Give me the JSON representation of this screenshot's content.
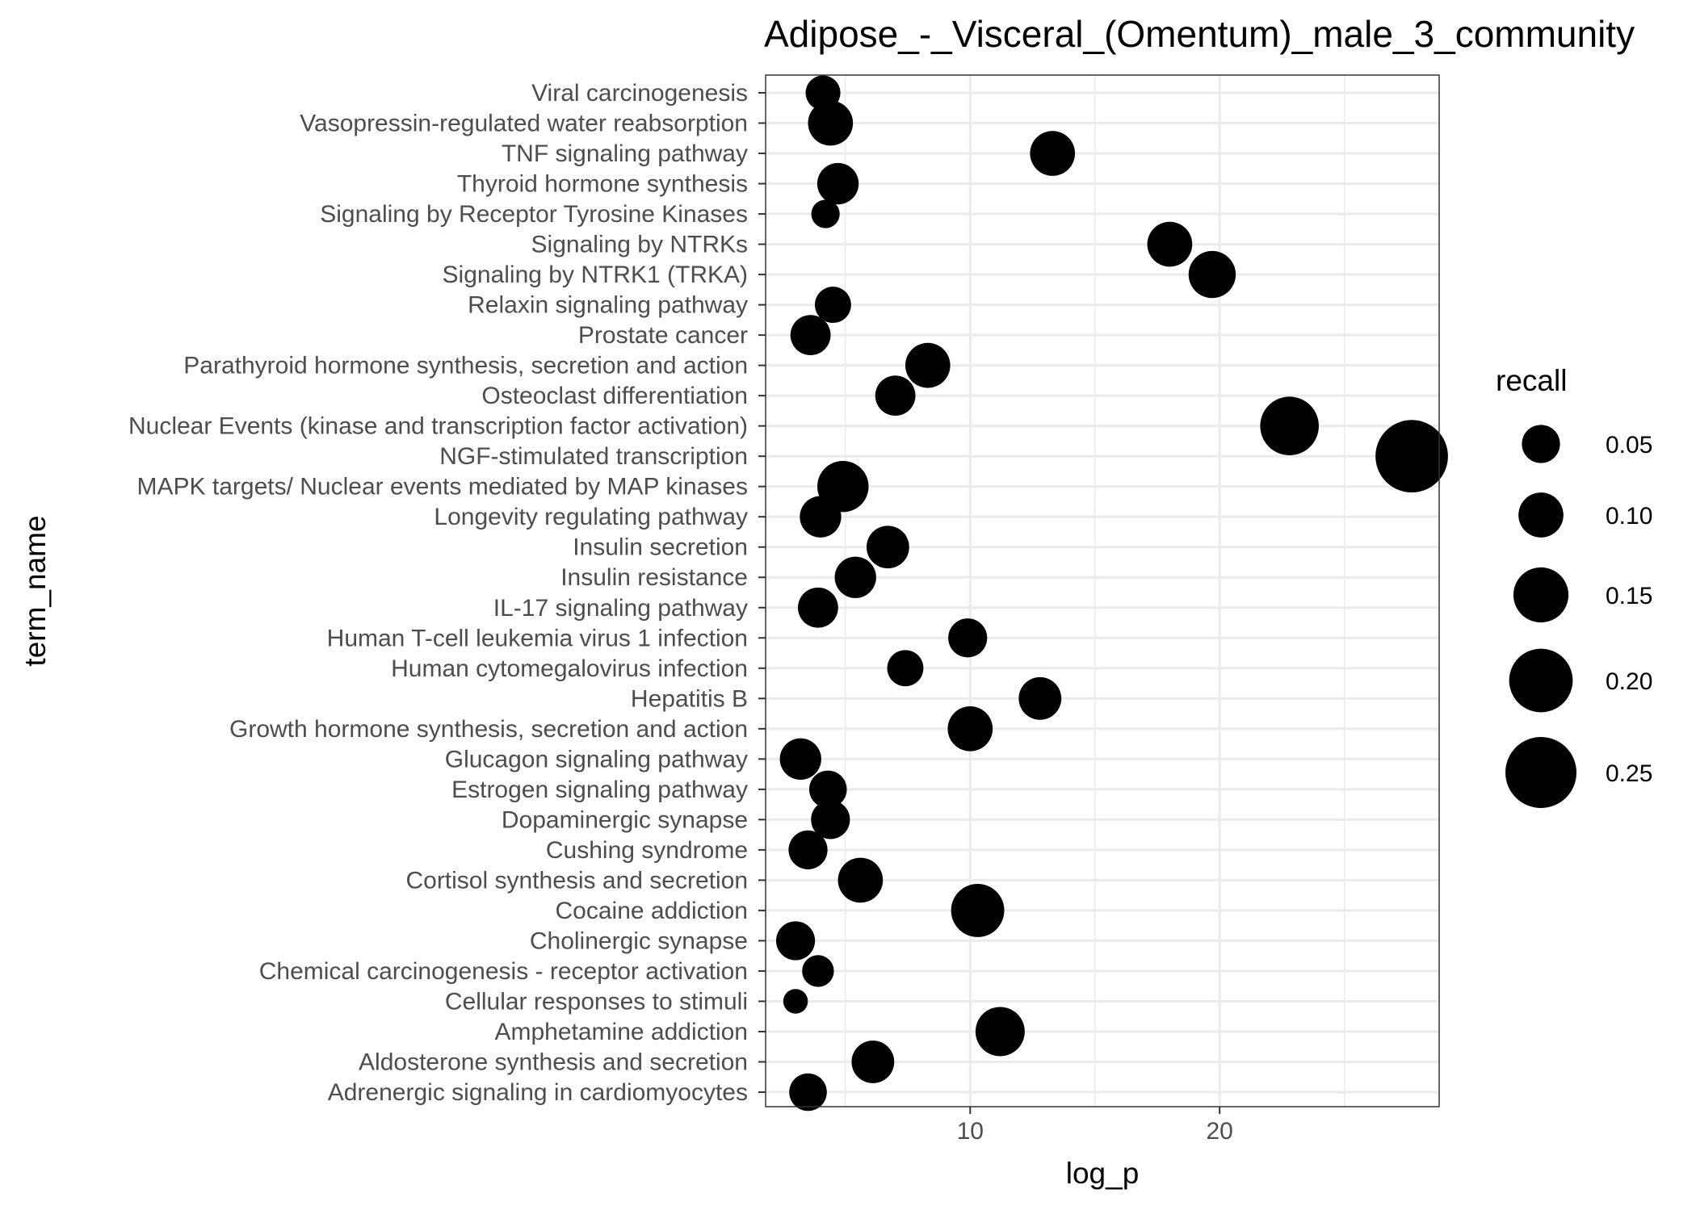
{
  "chart_data": {
    "type": "scatter",
    "title": "Adipose_-_Visceral_(Omentum)_male_3_community",
    "xlabel": "log_p",
    "ylabel": "term_name",
    "xlim": [
      1.8,
      28.8
    ],
    "x_ticks": [
      10,
      20
    ],
    "grid": true,
    "legend": {
      "title": "recall",
      "placement": "right",
      "entries": [
        {
          "label": "0.05",
          "value": 0.05
        },
        {
          "label": "0.10",
          "value": 0.1
        },
        {
          "label": "0.15",
          "value": 0.15
        },
        {
          "label": "0.20",
          "value": 0.2
        },
        {
          "label": "0.25",
          "value": 0.25
        }
      ]
    },
    "point_color": "#000000",
    "points": [
      {
        "term": "Viral carcinogenesis",
        "log_p": 4.1,
        "recall": 0.06
      },
      {
        "term": "Vasopressin-regulated water reabsorption",
        "log_p": 4.4,
        "recall": 0.1
      },
      {
        "term": "TNF signaling pathway",
        "log_p": 13.3,
        "recall": 0.1
      },
      {
        "term": "Thyroid hormone synthesis",
        "log_p": 4.7,
        "recall": 0.085
      },
      {
        "term": "Signaling by Receptor Tyrosine Kinases",
        "log_p": 4.2,
        "recall": 0.04
      },
      {
        "term": "Signaling by NTRKs",
        "log_p": 18.0,
        "recall": 0.1
      },
      {
        "term": "Signaling by NTRK1 (TRKA)",
        "log_p": 19.7,
        "recall": 0.11
      },
      {
        "term": "Relaxin signaling pathway",
        "log_p": 4.5,
        "recall": 0.065
      },
      {
        "term": "Prostate cancer",
        "log_p": 3.6,
        "recall": 0.08
      },
      {
        "term": "Parathyroid hormone synthesis, secretion and action",
        "log_p": 8.3,
        "recall": 0.1
      },
      {
        "term": "Osteoclast differentiation",
        "log_p": 7.0,
        "recall": 0.08
      },
      {
        "term": "Nuclear Events (kinase and transcription factor activation)",
        "log_p": 22.8,
        "recall": 0.17
      },
      {
        "term": "NGF-stimulated transcription",
        "log_p": 27.7,
        "recall": 0.26
      },
      {
        "term": "MAPK targets/ Nuclear events mediated by MAP kinases",
        "log_p": 4.9,
        "recall": 0.13
      },
      {
        "term": "Longevity regulating pathway",
        "log_p": 4.0,
        "recall": 0.085
      },
      {
        "term": "Insulin secretion",
        "log_p": 6.7,
        "recall": 0.09
      },
      {
        "term": "Insulin resistance",
        "log_p": 5.4,
        "recall": 0.085
      },
      {
        "term": "IL-17 signaling pathway",
        "log_p": 3.9,
        "recall": 0.08
      },
      {
        "term": "Human T-cell leukemia virus 1 infection",
        "log_p": 9.9,
        "recall": 0.075
      },
      {
        "term": "Human cytomegalovirus infection",
        "log_p": 7.4,
        "recall": 0.065
      },
      {
        "term": "Hepatitis B",
        "log_p": 12.8,
        "recall": 0.09
      },
      {
        "term": "Growth hormone synthesis, secretion and action",
        "log_p": 10.0,
        "recall": 0.1
      },
      {
        "term": "Glucagon signaling pathway",
        "log_p": 3.2,
        "recall": 0.085
      },
      {
        "term": "Estrogen signaling pathway",
        "log_p": 4.3,
        "recall": 0.07
      },
      {
        "term": "Dopaminergic synapse",
        "log_p": 4.4,
        "recall": 0.075
      },
      {
        "term": "Cushing syndrome",
        "log_p": 3.5,
        "recall": 0.075
      },
      {
        "term": "Cortisol synthesis and secretion",
        "log_p": 5.6,
        "recall": 0.1
      },
      {
        "term": "Cocaine addiction",
        "log_p": 10.3,
        "recall": 0.14
      },
      {
        "term": "Cholinergic synapse",
        "log_p": 3.0,
        "recall": 0.075
      },
      {
        "term": "Chemical carcinogenesis - receptor activation",
        "log_p": 3.9,
        "recall": 0.05
      },
      {
        "term": "Cellular responses to stimuli",
        "log_p": 3.0,
        "recall": 0.03
      },
      {
        "term": "Amphetamine addiction",
        "log_p": 11.2,
        "recall": 0.12
      },
      {
        "term": "Aldosterone synthesis and secretion",
        "log_p": 6.1,
        "recall": 0.09
      },
      {
        "term": "Adrenergic signaling in cardiomyocytes",
        "log_p": 3.5,
        "recall": 0.07
      }
    ]
  }
}
